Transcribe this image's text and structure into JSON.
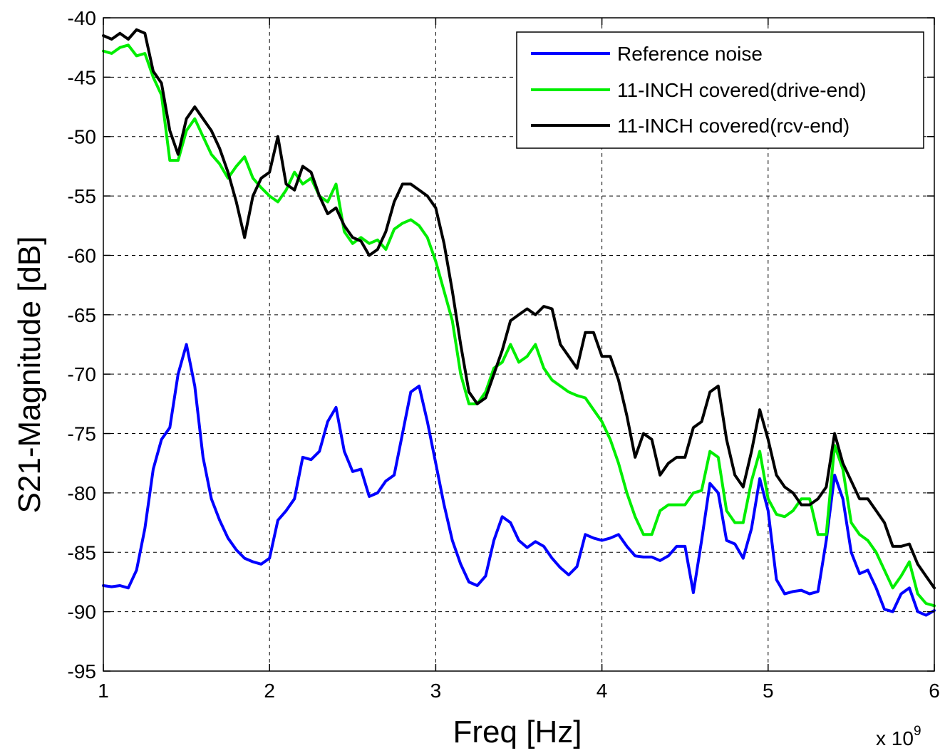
{
  "chart_data": {
    "type": "line",
    "title": "",
    "xlabel": "Freq [Hz]",
    "ylabel": "S21-Magnitude [dB]",
    "x_multiplier_label": "x 10",
    "x_multiplier_exp": "9",
    "xlim": [
      1,
      6
    ],
    "ylim": [
      -95,
      -40
    ],
    "xticks": [
      1,
      2,
      3,
      4,
      5,
      6
    ],
    "yticks": [
      -95,
      -90,
      -85,
      -80,
      -75,
      -70,
      -65,
      -60,
      -55,
      -50,
      -45,
      -40
    ],
    "xtick_labels": [
      "1",
      "2",
      "3",
      "4",
      "5",
      "6"
    ],
    "ytick_labels": [
      "-95",
      "-90",
      "-85",
      "-80",
      "-75",
      "-70",
      "-65",
      "-60",
      "-55",
      "-50",
      "-45",
      "-40"
    ],
    "grid": true,
    "legend_position": "top-right",
    "series": [
      {
        "name": "Reference noise",
        "color": "#0000ff",
        "x": [
          1.0,
          1.05,
          1.1,
          1.15,
          1.2,
          1.25,
          1.3,
          1.35,
          1.4,
          1.45,
          1.5,
          1.55,
          1.6,
          1.65,
          1.7,
          1.75,
          1.8,
          1.85,
          1.9,
          1.95,
          2.0,
          2.05,
          2.1,
          2.15,
          2.2,
          2.25,
          2.3,
          2.35,
          2.4,
          2.45,
          2.5,
          2.55,
          2.6,
          2.65,
          2.7,
          2.75,
          2.8,
          2.85,
          2.9,
          2.95,
          3.0,
          3.05,
          3.1,
          3.15,
          3.2,
          3.25,
          3.3,
          3.35,
          3.4,
          3.45,
          3.5,
          3.55,
          3.6,
          3.65,
          3.7,
          3.75,
          3.8,
          3.85,
          3.9,
          3.95,
          4.0,
          4.05,
          4.1,
          4.15,
          4.2,
          4.25,
          4.3,
          4.35,
          4.4,
          4.45,
          4.5,
          4.55,
          4.6,
          4.65,
          4.7,
          4.75,
          4.8,
          4.85,
          4.9,
          4.95,
          5.0,
          5.05,
          5.1,
          5.15,
          5.2,
          5.25,
          5.3,
          5.35,
          5.4,
          5.45,
          5.5,
          5.55,
          5.6,
          5.65,
          5.7,
          5.75,
          5.8,
          5.85,
          5.9,
          5.95,
          6.0
        ],
        "y": [
          -87.8,
          -87.9,
          -87.8,
          -88.0,
          -86.5,
          -83.0,
          -78.0,
          -75.5,
          -74.5,
          -70.0,
          -67.5,
          -71.0,
          -77.0,
          -80.5,
          -82.3,
          -83.8,
          -84.8,
          -85.5,
          -85.8,
          -86.0,
          -85.5,
          -82.3,
          -81.5,
          -80.5,
          -77.0,
          -77.2,
          -76.5,
          -74.0,
          -72.8,
          -76.5,
          -78.2,
          -78.0,
          -80.3,
          -80.0,
          -79.0,
          -78.5,
          -75.0,
          -71.5,
          -71.0,
          -74.0,
          -77.5,
          -81.0,
          -84.0,
          -86.0,
          -87.5,
          -87.8,
          -87.0,
          -84.0,
          -82.0,
          -82.5,
          -84.0,
          -84.6,
          -84.1,
          -84.5,
          -85.5,
          -86.3,
          -86.9,
          -86.2,
          -83.5,
          -83.8,
          -84.0,
          -83.8,
          -83.5,
          -84.5,
          -85.3,
          -85.4,
          -85.4,
          -85.7,
          -85.3,
          -84.5,
          -84.5,
          -88.4,
          -84.0,
          -79.2,
          -80.0,
          -84.0,
          -84.3,
          -85.5,
          -83.0,
          -78.8,
          -81.5,
          -87.3,
          -88.5,
          -88.3,
          -88.2,
          -88.5,
          -88.3,
          -84.0,
          -78.5,
          -80.5,
          -85.0,
          -86.8,
          -86.5,
          -88.0,
          -89.8,
          -90.0,
          -88.5,
          -88.0,
          -90.0,
          -90.3,
          -89.9
        ]
      },
      {
        "name": "11-INCH covered(drive-end)",
        "color": "#00ee00",
        "x": [
          1.0,
          1.05,
          1.1,
          1.15,
          1.2,
          1.25,
          1.3,
          1.35,
          1.4,
          1.45,
          1.5,
          1.55,
          1.6,
          1.65,
          1.7,
          1.75,
          1.8,
          1.85,
          1.9,
          1.95,
          2.0,
          2.05,
          2.1,
          2.15,
          2.2,
          2.25,
          2.3,
          2.35,
          2.4,
          2.45,
          2.5,
          2.55,
          2.6,
          2.65,
          2.7,
          2.75,
          2.8,
          2.85,
          2.9,
          2.95,
          3.0,
          3.05,
          3.1,
          3.15,
          3.2,
          3.25,
          3.3,
          3.35,
          3.4,
          3.45,
          3.5,
          3.55,
          3.6,
          3.65,
          3.7,
          3.75,
          3.8,
          3.85,
          3.9,
          3.95,
          4.0,
          4.05,
          4.1,
          4.15,
          4.2,
          4.25,
          4.3,
          4.35,
          4.4,
          4.45,
          4.5,
          4.55,
          4.6,
          4.65,
          4.7,
          4.75,
          4.8,
          4.85,
          4.9,
          4.95,
          5.0,
          5.05,
          5.1,
          5.15,
          5.2,
          5.25,
          5.3,
          5.35,
          5.4,
          5.45,
          5.5,
          5.55,
          5.6,
          5.65,
          5.7,
          5.75,
          5.8,
          5.85,
          5.9,
          5.95,
          6.0
        ],
        "y": [
          -42.8,
          -43.0,
          -42.5,
          -42.3,
          -43.2,
          -43.0,
          -45.0,
          -46.5,
          -52.0,
          -52.0,
          -49.5,
          -48.5,
          -50.0,
          -51.5,
          -52.3,
          -53.5,
          -52.5,
          -51.7,
          -53.5,
          -54.3,
          -55.0,
          -55.5,
          -54.5,
          -53.0,
          -54.0,
          -53.5,
          -55.0,
          -55.5,
          -54.0,
          -58.0,
          -59.0,
          -58.5,
          -59.0,
          -58.7,
          -59.5,
          -57.8,
          -57.3,
          -57.0,
          -57.5,
          -58.5,
          -60.5,
          -63.0,
          -65.5,
          -70.0,
          -72.5,
          -72.5,
          -71.5,
          -69.5,
          -69.0,
          -67.5,
          -69.0,
          -68.5,
          -67.5,
          -69.5,
          -70.5,
          -71.0,
          -71.5,
          -71.8,
          -72.0,
          -73.0,
          -74.0,
          -75.5,
          -77.5,
          -80.0,
          -82.0,
          -83.5,
          -83.5,
          -81.5,
          -81.0,
          -81.0,
          -81.0,
          -80.0,
          -79.8,
          -76.5,
          -77.0,
          -81.5,
          -82.5,
          -82.5,
          -79.0,
          -76.5,
          -80.5,
          -81.8,
          -82.0,
          -81.5,
          -80.5,
          -80.5,
          -83.5,
          -83.5,
          -76.0,
          -78.0,
          -82.5,
          -83.5,
          -84.0,
          -85.0,
          -86.5,
          -88.0,
          -87.0,
          -85.8,
          -88.5,
          -89.3,
          -89.5
        ]
      },
      {
        "name": "11-INCH covered(rcv-end)",
        "color": "#000000",
        "x": [
          1.0,
          1.05,
          1.1,
          1.15,
          1.2,
          1.25,
          1.3,
          1.35,
          1.4,
          1.45,
          1.5,
          1.55,
          1.6,
          1.65,
          1.7,
          1.75,
          1.8,
          1.85,
          1.9,
          1.95,
          2.0,
          2.05,
          2.1,
          2.15,
          2.2,
          2.25,
          2.3,
          2.35,
          2.4,
          2.45,
          2.5,
          2.55,
          2.6,
          2.65,
          2.7,
          2.75,
          2.8,
          2.85,
          2.9,
          2.95,
          3.0,
          3.05,
          3.1,
          3.15,
          3.2,
          3.25,
          3.3,
          3.35,
          3.4,
          3.45,
          3.5,
          3.55,
          3.6,
          3.65,
          3.7,
          3.75,
          3.8,
          3.85,
          3.9,
          3.95,
          4.0,
          4.05,
          4.1,
          4.15,
          4.2,
          4.25,
          4.3,
          4.35,
          4.4,
          4.45,
          4.5,
          4.55,
          4.6,
          4.65,
          4.7,
          4.75,
          4.8,
          4.85,
          4.9,
          4.95,
          5.0,
          5.05,
          5.1,
          5.15,
          5.2,
          5.25,
          5.3,
          5.35,
          5.4,
          5.45,
          5.5,
          5.55,
          5.6,
          5.65,
          5.7,
          5.75,
          5.8,
          5.85,
          5.9,
          5.95,
          6.0
        ],
        "y": [
          -41.5,
          -41.8,
          -41.3,
          -41.8,
          -41.0,
          -41.3,
          -44.5,
          -45.5,
          -49.5,
          -51.5,
          -48.5,
          -47.5,
          -48.5,
          -49.5,
          -51.0,
          -53.0,
          -55.5,
          -58.5,
          -55.0,
          -53.5,
          -53.0,
          -50.0,
          -54.0,
          -54.5,
          -52.5,
          -53.0,
          -55.0,
          -56.5,
          -56.0,
          -57.5,
          -58.5,
          -58.8,
          -60.0,
          -59.5,
          -58.0,
          -55.5,
          -54.0,
          -54.0,
          -54.5,
          -55.0,
          -56.0,
          -59.0,
          -63.0,
          -67.5,
          -71.5,
          -72.5,
          -72.0,
          -70.0,
          -68.0,
          -65.5,
          -65.0,
          -64.5,
          -65.0,
          -64.3,
          -64.5,
          -67.5,
          -68.5,
          -69.5,
          -66.5,
          -66.5,
          -68.5,
          -68.5,
          -70.5,
          -73.5,
          -77.0,
          -75.0,
          -75.5,
          -78.5,
          -77.5,
          -77.0,
          -77.0,
          -74.5,
          -74.0,
          -71.5,
          -71.0,
          -75.5,
          -78.5,
          -79.5,
          -76.5,
          -73.0,
          -75.5,
          -78.5,
          -79.5,
          -80.0,
          -81.0,
          -81.0,
          -80.5,
          -79.5,
          -75.0,
          -77.5,
          -79.0,
          -80.5,
          -80.5,
          -81.5,
          -82.5,
          -84.5,
          -84.5,
          -84.3,
          -86.0,
          -87.0,
          -88.0
        ]
      }
    ]
  }
}
